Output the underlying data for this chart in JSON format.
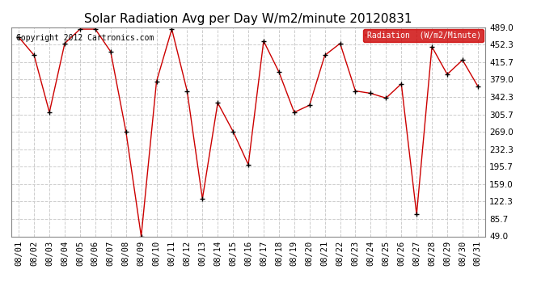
{
  "title": "Solar Radiation Avg per Day W/m2/minute 20120831",
  "copyright": "Copyright 2012 Cartronics.com",
  "legend_label": "Radiation  (W/m2/Minute)",
  "dates": [
    "08/01",
    "08/02",
    "08/03",
    "08/04",
    "08/05",
    "08/06",
    "08/07",
    "08/08",
    "08/09",
    "08/10",
    "08/11",
    "08/12",
    "08/13",
    "08/14",
    "08/15",
    "08/16",
    "08/17",
    "08/18",
    "08/19",
    "08/20",
    "08/21",
    "08/22",
    "08/23",
    "08/24",
    "08/25",
    "08/26",
    "08/27",
    "08/28",
    "08/29",
    "08/30",
    "08/31"
  ],
  "values": [
    468,
    430,
    310,
    455,
    485,
    485,
    438,
    270,
    49,
    375,
    485,
    355,
    128,
    330,
    270,
    200,
    460,
    395,
    310,
    325,
    430,
    455,
    355,
    350,
    340,
    370,
    95,
    448,
    390,
    420,
    365
  ],
  "line_color": "#cc0000",
  "marker_color": "#000000",
  "background_color": "#ffffff",
  "grid_color": "#cccccc",
  "ylim_min": 49.0,
  "ylim_max": 489.0,
  "yticks": [
    49.0,
    85.7,
    122.3,
    159.0,
    195.7,
    232.3,
    269.0,
    305.7,
    342.3,
    379.0,
    415.7,
    452.3,
    489.0
  ],
  "title_fontsize": 11,
  "tick_fontsize": 7.5,
  "legend_bg": "#cc0000",
  "legend_text_color": "#ffffff",
  "legend_fontsize": 7,
  "copyright_fontsize": 7
}
